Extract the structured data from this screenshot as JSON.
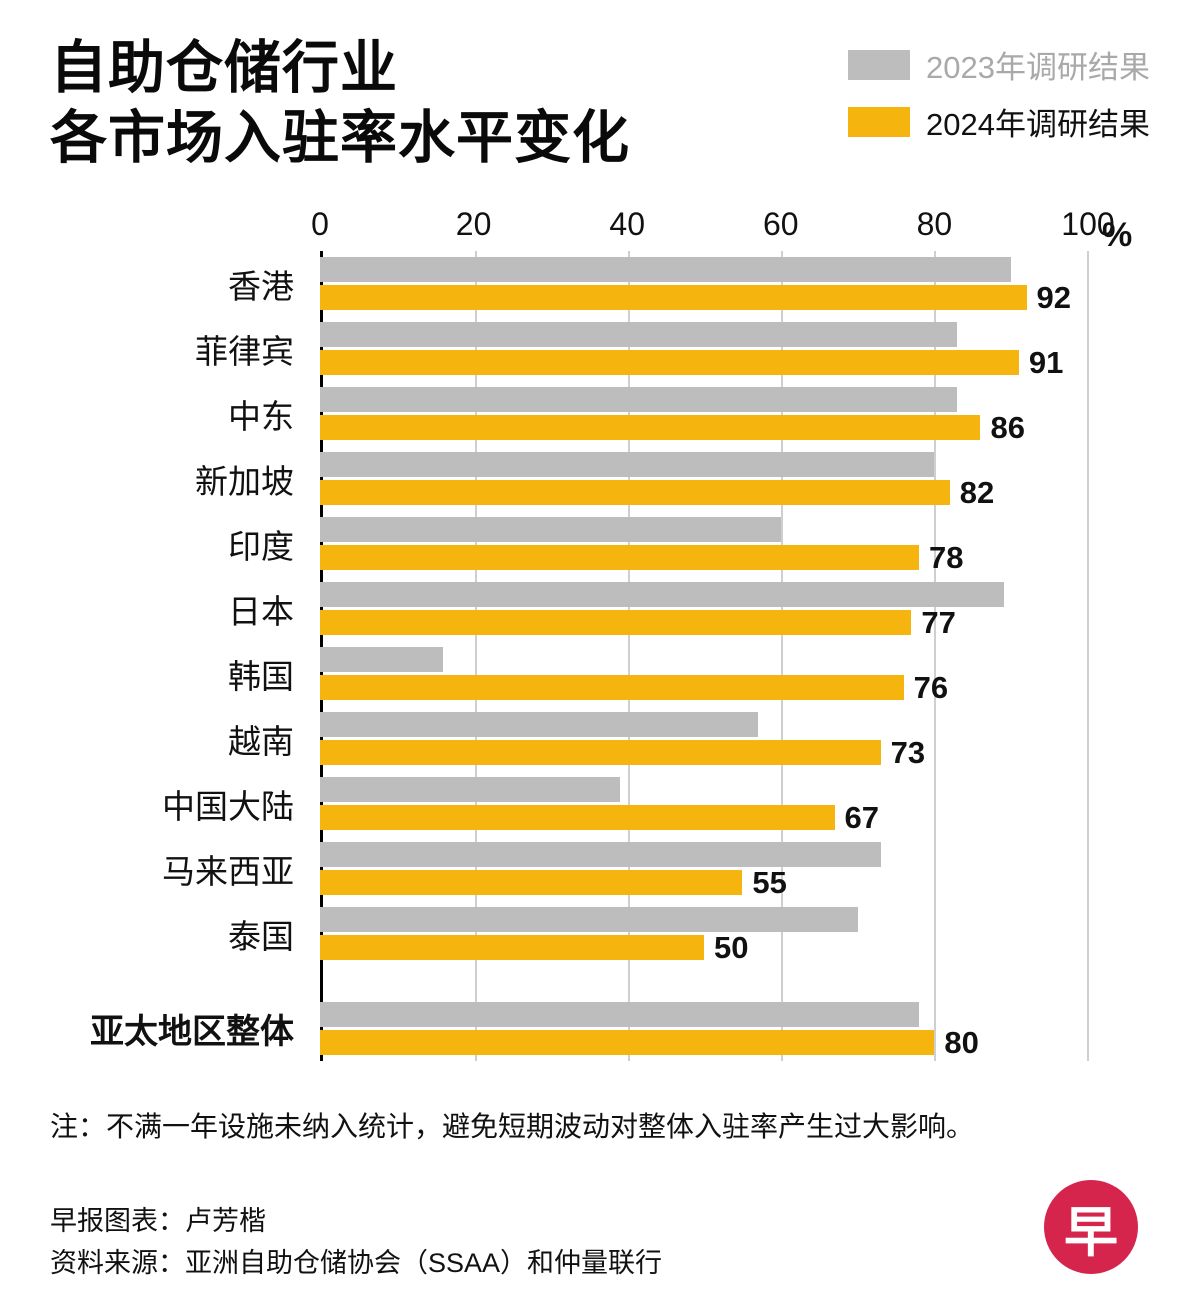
{
  "title": {
    "line1": "自助仓储行业",
    "line2": "各市场入驻率水平变化"
  },
  "legend": [
    {
      "label": "2023年调研结果",
      "color": "#BDBDBD"
    },
    {
      "label": "2024年调研结果",
      "color": "#F6B40E"
    }
  ],
  "axis": {
    "ticks": [
      0,
      20,
      40,
      60,
      80,
      100
    ],
    "unit": "%",
    "max": 100
  },
  "chart_data": {
    "type": "bar",
    "orientation": "horizontal",
    "title": "自助仓储行业各市场入驻率水平变化",
    "categories": [
      "香港",
      "菲律宾",
      "中东",
      "新加坡",
      "印度",
      "日本",
      "韩国",
      "越南",
      "中国大陆",
      "马来西亚",
      "泰国",
      "亚太地区整体"
    ],
    "series": [
      {
        "name": "2023年调研结果",
        "color": "#BDBDBD",
        "values": [
          90,
          83,
          83,
          80,
          60,
          89,
          16,
          57,
          39,
          73,
          70,
          78
        ]
      },
      {
        "name": "2024年调研结果",
        "color": "#F6B40E",
        "values": [
          92,
          91,
          86,
          82,
          78,
          77,
          76,
          73,
          67,
          55,
          50,
          80
        ]
      }
    ],
    "value_labels_series": "2024年调研结果",
    "xlim": [
      0,
      100
    ],
    "grid": true,
    "legend_position": "top-right",
    "bold_category": "亚太地区整体"
  },
  "note": "注：不满一年设施未纳入统计，避免短期波动对整体入驻率产生过大影响。",
  "credits": {
    "chart_credit": "早报图表：卢芳楷",
    "source": "资料来源：亚洲自助仓储协会（SSAA）和仲量联行"
  },
  "logo": {
    "text": "早",
    "bg": "#D6254D"
  }
}
